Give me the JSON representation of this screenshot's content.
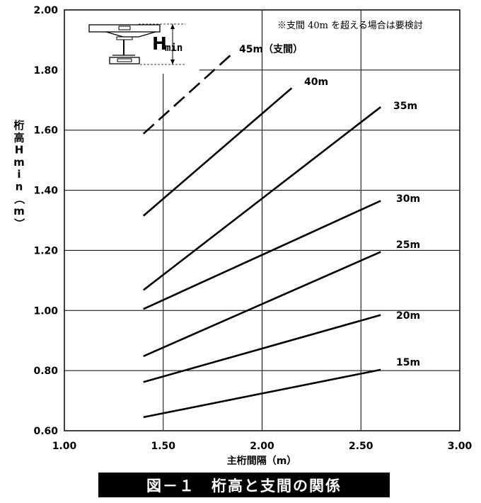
{
  "chart_data": {
    "type": "line",
    "xlabel": "主桁間隔（m）",
    "ylabel": "桁高Hmin（m）",
    "xlim": [
      1.0,
      3.0
    ],
    "ylim": [
      0.6,
      2.0
    ],
    "x_ticks": [
      "1.00",
      "1.50",
      "2.00",
      "2.50",
      "3.00"
    ],
    "y_ticks": [
      "0.60",
      "0.80",
      "1.00",
      "1.20",
      "1.40",
      "1.60",
      "1.80",
      "2.00"
    ],
    "grid": true,
    "note": "※支間 40m を超える場合は要検討",
    "diagram_label": {
      "main": "H",
      "sub": "min"
    },
    "series": [
      {
        "name": "15m",
        "x": [
          1.4,
          2.6
        ],
        "y": [
          0.645,
          0.803
        ],
        "style": "solid"
      },
      {
        "name": "20m",
        "x": [
          1.4,
          2.6
        ],
        "y": [
          0.762,
          0.985
        ],
        "style": "solid"
      },
      {
        "name": "25m",
        "x": [
          1.4,
          2.6
        ],
        "y": [
          0.848,
          1.195
        ],
        "style": "solid"
      },
      {
        "name": "30m",
        "x": [
          1.4,
          2.6
        ],
        "y": [
          1.005,
          1.365
        ],
        "style": "solid"
      },
      {
        "name": "35m",
        "x": [
          1.4,
          2.6
        ],
        "y": [
          1.068,
          1.677
        ],
        "style": "solid"
      },
      {
        "name": "40m",
        "x": [
          1.4,
          2.15
        ],
        "y": [
          1.315,
          1.74
        ],
        "style": "solid"
      },
      {
        "name": "45m（支間）",
        "x": [
          1.4,
          1.85
        ],
        "y": [
          1.588,
          1.855
        ],
        "style": "dashed"
      }
    ]
  },
  "caption": "図－１　桁高と支間の関係"
}
